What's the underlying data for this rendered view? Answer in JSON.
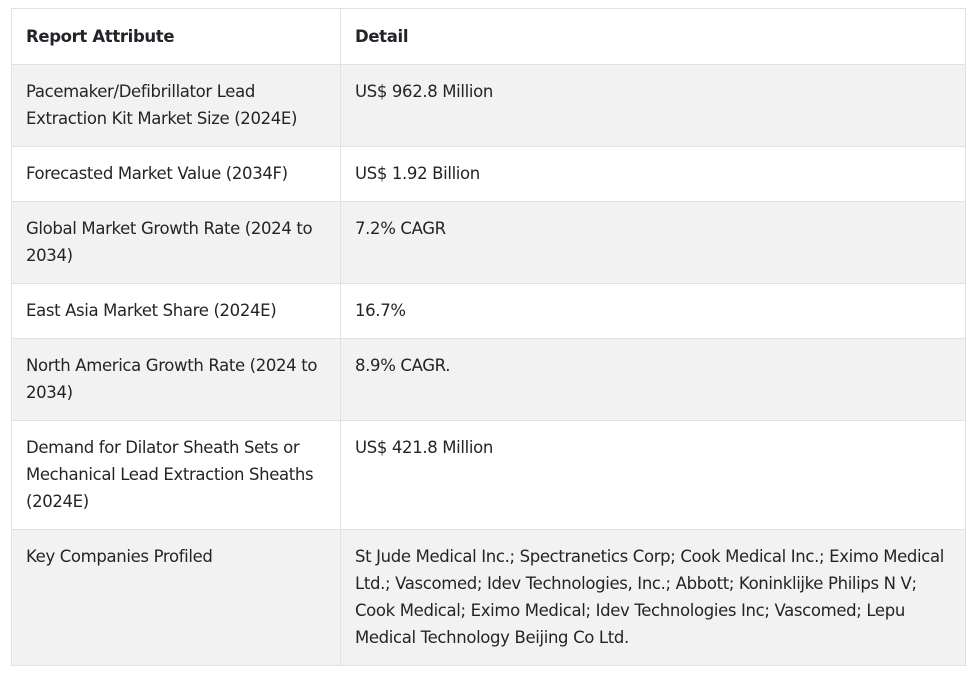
{
  "table": {
    "headers": [
      "Report Attribute",
      "Detail"
    ],
    "rows": [
      [
        "Pacemaker/Defibrillator Lead Extraction Kit Market Size (2024E)",
        "US$ 962.8 Million"
      ],
      [
        "Forecasted Market Value (2034F)",
        "US$ 1.92 Billion"
      ],
      [
        "Global Market Growth Rate (2024 to 2034)",
        "7.2% CAGR"
      ],
      [
        "East Asia Market Share (2024E)",
        "16.7%"
      ],
      [
        "North America Growth Rate (2024 to 2034)",
        "8.9% CAGR."
      ],
      [
        "Demand for Dilator Sheath Sets or Mechanical Lead Extraction Sheaths (2024E)",
        "US$ 421.8 Million"
      ],
      [
        "Key Companies Profiled",
        "St Jude Medical Inc.; Spectranetics Corp; Cook Medical Inc.; Eximo Medical Ltd.; Vascomed; Idev Technologies, Inc.; Abbott; Koninklijke Philips N V; Cook Medical; Eximo Medical; Idev Technologies Inc; Vascomed; Lepu Medical Technology Beijing Co Ltd."
      ]
    ]
  }
}
